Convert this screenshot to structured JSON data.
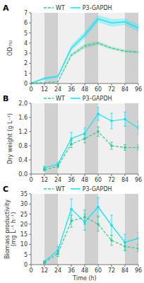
{
  "chart_data": [
    {
      "type": "line",
      "title": "A",
      "y_label": "OD₇₅₀",
      "xlim": [
        0,
        96
      ],
      "xticks": [
        0,
        12,
        24,
        36,
        48,
        60,
        72,
        84,
        96
      ],
      "ylim": [
        0,
        7
      ],
      "yticks": [
        0,
        1,
        2,
        3,
        4,
        5,
        6,
        7
      ],
      "grid": false,
      "legend": "top",
      "day_bands": {
        "color": "#f0f0f0",
        "ranges": [
          [
            0,
            12
          ],
          [
            24,
            48
          ],
          [
            60,
            84
          ]
        ]
      },
      "night_bands": {
        "color": "#d0d0d0",
        "ranges": [
          [
            12,
            24
          ],
          [
            48,
            60
          ],
          [
            84,
            96
          ]
        ]
      },
      "series": [
        {
          "name": "WT",
          "color": "#2ecc8f",
          "line_style": "dashed",
          "x": [
            0,
            12,
            24,
            36,
            48,
            60,
            72,
            84,
            96
          ],
          "values": [
            0.05,
            0.08,
            0.18,
            2.8,
            3.7,
            4.0,
            3.5,
            3.2,
            3.1
          ],
          "errors": [
            0.03,
            0.03,
            0.05,
            0.18,
            0.22,
            0.18,
            0.15,
            0.14,
            0.12
          ]
        },
        {
          "name": "P3-GAPDH",
          "color": "#00e5ff",
          "line_style": "solid",
          "x": [
            0,
            12,
            24,
            36,
            48,
            60,
            72,
            84,
            96
          ],
          "values": [
            0.05,
            0.5,
            0.7,
            3.5,
            4.8,
            6.4,
            6.0,
            6.1,
            5.5
          ],
          "errors": [
            0.03,
            0.15,
            0.12,
            0.3,
            0.35,
            0.35,
            0.38,
            0.32,
            0.35
          ]
        }
      ]
    },
    {
      "type": "line",
      "title": "B",
      "y_label": "Dry weight (g L⁻¹)",
      "xlim": [
        0,
        96
      ],
      "xticks": [
        0,
        12,
        24,
        36,
        48,
        60,
        72,
        84,
        96
      ],
      "ylim": [
        0,
        2.0
      ],
      "yticks": [
        {
          "value": 0,
          "label": "0.0"
        },
        0.4,
        0.8,
        1.2,
        1.6,
        {
          "value": 2,
          "label": "2.0"
        }
      ],
      "grid": false,
      "legend": "top",
      "day_bands": {
        "color": "#f0f0f0",
        "ranges": [
          [
            0,
            12
          ],
          [
            24,
            48
          ],
          [
            60,
            84
          ]
        ]
      },
      "night_bands": {
        "color": "#d0d0d0",
        "ranges": [
          [
            12,
            24
          ],
          [
            48,
            60
          ],
          [
            84,
            96
          ]
        ]
      },
      "series": [
        {
          "name": "WT",
          "color": "#2ecc8f",
          "line_style": "dashed",
          "marker": "circle",
          "x": [
            12,
            24,
            36,
            48,
            60,
            72,
            84,
            96
          ],
          "values": [
            0.12,
            0.22,
            0.85,
            1.0,
            1.2,
            0.8,
            0.75,
            0.75
          ],
          "errors": [
            0.03,
            0.04,
            0.1,
            0.12,
            0.13,
            0.1,
            0.08,
            0.08
          ]
        },
        {
          "name": "P3-GAPDH",
          "color": "#00e5ff",
          "line_style": "solid",
          "marker": "circle",
          "x": [
            12,
            24,
            36,
            48,
            60,
            72,
            84,
            96
          ],
          "values": [
            0.18,
            0.28,
            1.0,
            1.15,
            1.7,
            1.5,
            1.55,
            1.3
          ],
          "errors": [
            0.04,
            0.05,
            0.18,
            0.15,
            0.18,
            0.22,
            0.2,
            0.18
          ]
        }
      ]
    },
    {
      "type": "line",
      "title": "C",
      "y_label": "Biomass productivity\n(mg L⁻¹ h⁻¹)",
      "x_label": "Time (h)",
      "xlim": [
        0,
        96
      ],
      "xticks": [
        0,
        12,
        24,
        36,
        48,
        60,
        72,
        84,
        96
      ],
      "ylim": [
        0,
        35
      ],
      "yticks": [
        0,
        5,
        10,
        15,
        20,
        25,
        30,
        35
      ],
      "grid": false,
      "legend": "top",
      "day_bands": {
        "color": "#f0f0f0",
        "ranges": [
          [
            0,
            12
          ],
          [
            24,
            48
          ],
          [
            60,
            84
          ]
        ]
      },
      "night_bands": {
        "color": "#d0d0d0",
        "ranges": [
          [
            12,
            24
          ],
          [
            48,
            60
          ],
          [
            84,
            96
          ]
        ]
      },
      "series": [
        {
          "name": "WT",
          "color": "#2ecc8f",
          "line_style": "dashed",
          "marker": "circle",
          "x": [
            12,
            24,
            36,
            48,
            60,
            72,
            84,
            96
          ],
          "values": [
            1.0,
            5.5,
            21.5,
            23.5,
            20.0,
            12.0,
            9.0,
            8.0
          ],
          "errors": [
            0.5,
            1.5,
            3.0,
            3.5,
            3.5,
            2.5,
            2.0,
            1.5
          ]
        },
        {
          "name": "P3-GAPDH",
          "color": "#00e5ff",
          "line_style": "solid",
          "marker": "circle",
          "x": [
            12,
            24,
            36,
            48,
            60,
            72,
            84,
            96
          ],
          "values": [
            1.5,
            7.0,
            27.5,
            21.0,
            28.5,
            19.5,
            11.0,
            13.0
          ],
          "errors": [
            0.5,
            2.0,
            5.0,
            4.0,
            4.5,
            5.0,
            4.0,
            3.0
          ]
        }
      ]
    }
  ]
}
